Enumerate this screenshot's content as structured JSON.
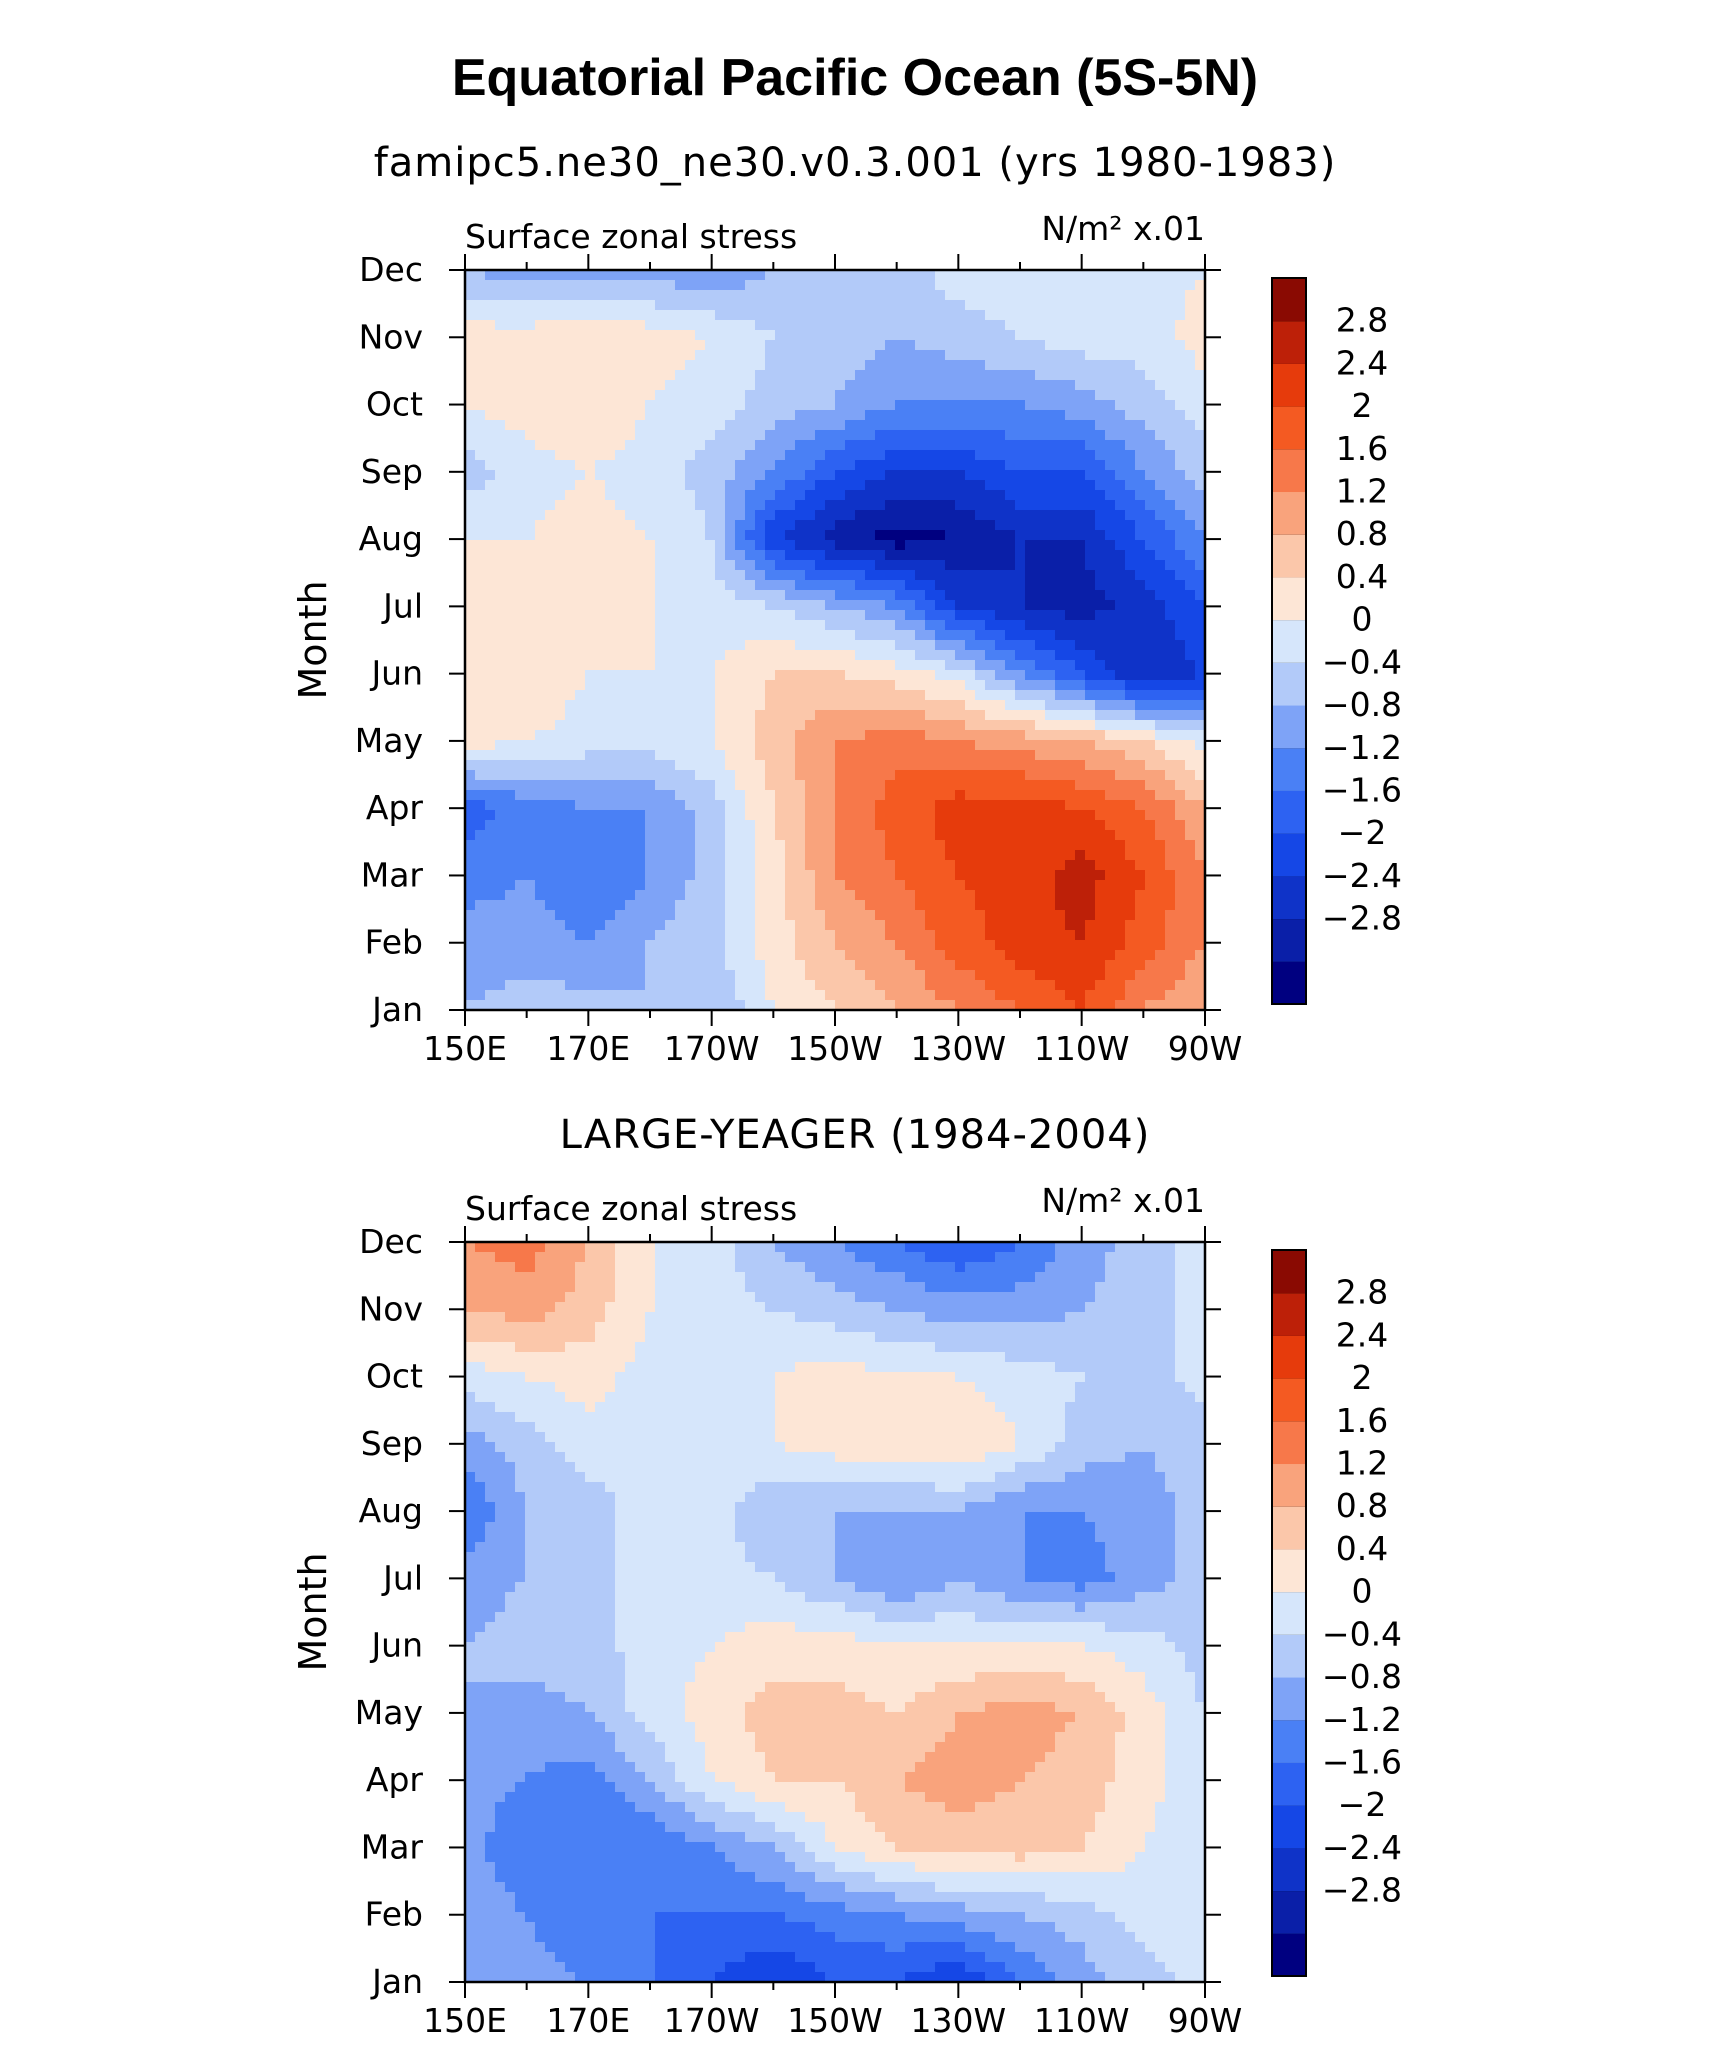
{
  "title": "Equatorial Pacific Ocean (5S-5N)",
  "colors": {
    "levels": [
      -3.2,
      -2.8,
      -2.4,
      -2.0,
      -1.6,
      -1.2,
      -0.8,
      -0.4,
      0,
      0.4,
      0.8,
      1.2,
      1.6,
      2.0,
      2.4,
      2.8,
      3.2
    ],
    "palette": [
      "#000080",
      "#0a1fa8",
      "#0f33c8",
      "#1547e6",
      "#2d62f2",
      "#4a80f5",
      "#7ea3f7",
      "#b2caf9",
      "#d6e6fb",
      "#fde6d6",
      "#fbc7aa",
      "#f9a37c",
      "#f7784a",
      "#f45a22",
      "#e63b0c",
      "#bd2008",
      "#8a0a02"
    ]
  },
  "chart_data": [
    {
      "type": "heatmap",
      "title": "famipc5.ne30_ne30.v0.3.001 (yrs 1980-1983)",
      "left_label": "Surface zonal stress",
      "right_label_html": "N/m² x.01",
      "ylabel": "Month",
      "xlabel": "",
      "x": [
        150,
        160,
        170,
        180,
        190,
        200,
        210,
        220,
        230,
        240,
        250,
        260,
        270
      ],
      "x_ticks": [
        150,
        170,
        190,
        210,
        230,
        250,
        270
      ],
      "x_tick_labels": [
        "150E",
        "170E",
        "170W",
        "150W",
        "130W",
        "110W",
        "90W"
      ],
      "y_tick_labels": [
        "Jan",
        "Feb",
        "Mar",
        "Apr",
        "May",
        "Jun",
        "Jul",
        "Aug",
        "Sep",
        "Oct",
        "Nov",
        "Dec"
      ],
      "colorbar_labels": [
        "2.8",
        "2.4",
        "2",
        "1.6",
        "1.2",
        "0.8",
        "0.4",
        "0",
        "−0.4",
        "−0.8",
        "−1.2",
        "−1.6",
        "−2",
        "−2.4",
        "−2.8"
      ],
      "values": [
        [
          -0.4,
          -0.2,
          -0.2,
          -0.4,
          -0.4,
          0.4,
          0.8,
          1.2,
          1.6,
          2.0,
          2.4,
          1.6,
          1.2
        ],
        [
          -0.6,
          -0.6,
          -0.8,
          -0.4,
          -0.1,
          0.6,
          1.2,
          1.6,
          2.2,
          2.6,
          2.8,
          2.2,
          1.6
        ],
        [
          -1.0,
          -0.8,
          -1.2,
          -0.8,
          -0.2,
          0.6,
          1.6,
          2.0,
          2.4,
          2.6,
          3.0,
          2.4,
          1.6
        ],
        [
          -1.4,
          -1.0,
          -0.8,
          -0.8,
          -0.2,
          0.8,
          1.6,
          2.2,
          2.6,
          2.6,
          2.4,
          2.0,
          1.2
        ],
        [
          0.6,
          0.4,
          0.2,
          0.2,
          0.4,
          1.0,
          1.6,
          1.8,
          1.6,
          1.4,
          1.2,
          0.8,
          0.2
        ],
        [
          0.8,
          0.8,
          0.4,
          0.4,
          0.4,
          0.8,
          0.8,
          0.6,
          0.2,
          -0.8,
          -1.6,
          -2.4,
          -2.0
        ],
        [
          0.8,
          0.6,
          0.6,
          0.4,
          0.2,
          0.0,
          -0.4,
          -0.8,
          -2.0,
          -2.4,
          -2.6,
          -2.2,
          -1.6
        ],
        [
          0.4,
          0.4,
          0.6,
          0.4,
          0.0,
          -2.0,
          -2.6,
          -3.0,
          -2.8,
          -2.4,
          -2.4,
          -1.6,
          -0.8
        ],
        [
          -0.2,
          0.2,
          0.4,
          0.2,
          -0.2,
          -0.8,
          -1.6,
          -2.0,
          -2.0,
          -1.6,
          -1.6,
          -0.8,
          -0.2
        ],
        [
          0.4,
          0.6,
          0.8,
          0.4,
          0.2,
          -0.2,
          -0.4,
          -0.8,
          -0.8,
          -0.8,
          -0.6,
          -0.2,
          0.2
        ],
        [
          0.6,
          0.6,
          0.8,
          0.6,
          0.4,
          0.0,
          -0.2,
          -0.4,
          -0.2,
          0.0,
          0.2,
          0.2,
          0.6
        ],
        [
          -0.4,
          -0.6,
          -0.6,
          -0.6,
          -0.8,
          -0.4,
          0.0,
          -0.2,
          0.2,
          0.2,
          0.2,
          0.2,
          0.4
        ]
      ]
    },
    {
      "type": "heatmap",
      "title": "LARGE-YEAGER (1984-2004)",
      "left_label": "Surface zonal stress",
      "right_label_html": "N/m² x.01",
      "ylabel": "Month",
      "xlabel": "",
      "x": [
        150,
        160,
        170,
        180,
        190,
        200,
        210,
        220,
        230,
        240,
        250,
        260,
        270
      ],
      "x_ticks": [
        150,
        170,
        190,
        210,
        230,
        250,
        270
      ],
      "x_tick_labels": [
        "150E",
        "170E",
        "170W",
        "150W",
        "130W",
        "110W",
        "90W"
      ],
      "y_tick_labels": [
        "Jan",
        "Feb",
        "Mar",
        "Apr",
        "May",
        "Jun",
        "Jul",
        "Aug",
        "Sep",
        "Oct",
        "Nov",
        "Dec"
      ],
      "colorbar_labels": [
        "2.8",
        "2.4",
        "2",
        "1.6",
        "1.2",
        "0.8",
        "0.4",
        "0",
        "−0.4",
        "−0.8",
        "−1.2",
        "−1.6",
        "−2",
        "−2.4",
        "−2.8"
      ],
      "values": [
        [
          -0.4,
          -0.6,
          -0.8,
          -1.2,
          -1.6,
          -2.0,
          -1.6,
          -1.6,
          -2.0,
          -1.2,
          -0.6,
          -0.2,
          0.2
        ],
        [
          -0.4,
          -0.8,
          -1.2,
          -1.2,
          -1.2,
          -1.2,
          -1.0,
          -0.8,
          -0.6,
          -0.4,
          -0.2,
          0.2,
          0.2
        ],
        [
          -0.6,
          -1.2,
          -1.2,
          -1.2,
          -0.8,
          -0.4,
          0.4,
          0.8,
          1.0,
          1.0,
          0.8,
          0.4,
          0.0
        ],
        [
          -0.6,
          -0.8,
          -1.0,
          -0.4,
          0.4,
          0.8,
          0.8,
          1.2,
          1.4,
          1.2,
          1.0,
          0.6,
          0.0
        ],
        [
          -0.4,
          -0.6,
          -0.4,
          0.2,
          0.6,
          1.0,
          1.0,
          0.8,
          1.2,
          1.4,
          1.2,
          0.6,
          0.0
        ],
        [
          -0.4,
          -0.2,
          -0.2,
          0.2,
          0.4,
          0.6,
          0.6,
          0.4,
          0.4,
          0.4,
          0.4,
          0.2,
          -0.2
        ],
        [
          -0.6,
          -0.4,
          -0.2,
          0.2,
          0.2,
          0.0,
          -0.4,
          -0.8,
          -0.4,
          -0.8,
          -1.0,
          -0.6,
          -0.2
        ],
        [
          -1.2,
          -0.4,
          -0.2,
          0.2,
          0.2,
          -0.4,
          -0.4,
          -0.4,
          -0.4,
          -0.8,
          -0.8,
          -0.6,
          -0.2
        ],
        [
          -0.6,
          -0.2,
          0.2,
          0.2,
          0.2,
          0.4,
          0.6,
          0.6,
          0.8,
          0.4,
          -0.2,
          -0.4,
          -0.2
        ],
        [
          0.2,
          0.4,
          0.6,
          0.2,
          0.2,
          0.4,
          0.6,
          0.4,
          0.4,
          0.2,
          0.0,
          -0.2,
          0.2
        ],
        [
          1.2,
          1.4,
          1.0,
          0.4,
          0.2,
          0.0,
          -0.2,
          -0.4,
          -0.6,
          -0.6,
          -0.4,
          -0.2,
          0.2
        ],
        [
          1.6,
          1.8,
          1.2,
          0.4,
          0.2,
          -0.4,
          -0.8,
          -1.2,
          -1.6,
          -1.2,
          -0.6,
          -0.2,
          0.2
        ]
      ]
    }
  ]
}
